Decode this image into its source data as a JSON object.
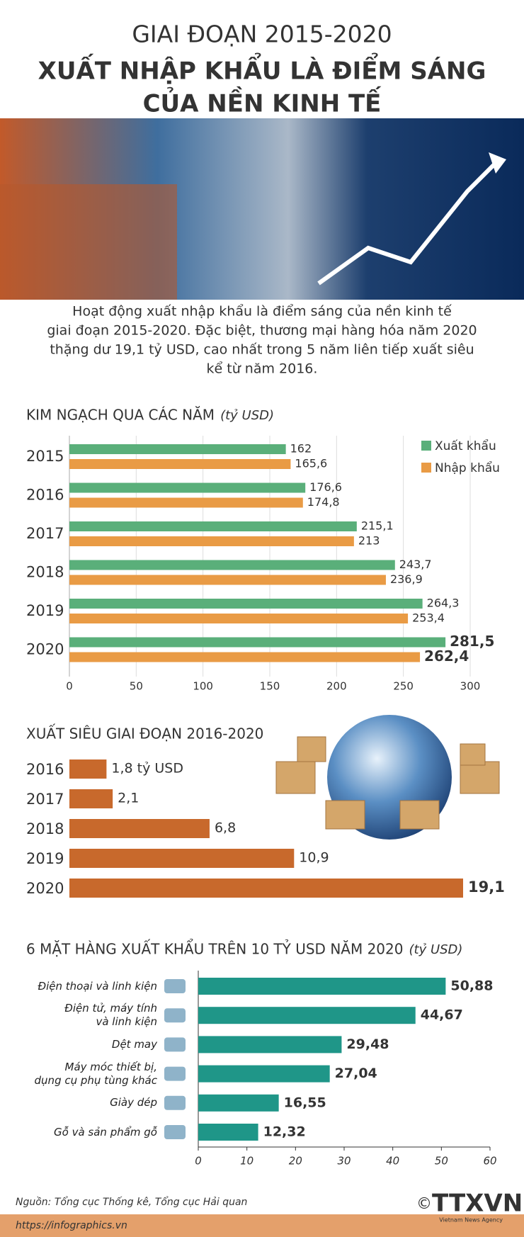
{
  "subtitle": "GIAI ĐOẠN 2015-2020",
  "title": [
    "XUẤT NHẬP KHẨU LÀ ĐIỂM SÁNG",
    "CỦA NỀN KINH TẾ"
  ],
  "intro": [
    "Hoạt động xuất nhập khẩu là điểm sáng của nền kinh tế",
    "giai đoạn 2015-2020. Đặc biệt, thương mại hàng hóa năm 2020",
    "thặng dư 19,1 tỷ USD, cao nhất trong 5 năm liên tiếp xuất siêu",
    "kể từ năm 2016."
  ],
  "chart_data": [
    {
      "type": "grouped-hbar",
      "title": "KIM NGẠCH QUA CÁC NĂM",
      "unit": "(tỷ USD)",
      "categories": [
        "2015",
        "2016",
        "2017",
        "2018",
        "2019",
        "2020"
      ],
      "series": [
        {
          "name": "Xuất khẩu",
          "color": "#5aaf7a",
          "values": [
            162,
            176.6,
            215.1,
            243.7,
            264.3,
            281.5
          ],
          "value_labels": [
            "162",
            "176,6",
            "215,1",
            "243,7",
            "264,3",
            "281,5"
          ]
        },
        {
          "name": "Nhập khẩu",
          "color": "#e99b45",
          "values": [
            165.6,
            174.8,
            213,
            236.9,
            253.4,
            262.4
          ],
          "value_labels": [
            "165,6",
            "174,8",
            "213",
            "236,9",
            "253,4",
            "262,4"
          ]
        }
      ],
      "xlim": [
        0,
        300
      ],
      "xticks": [
        0,
        50,
        100,
        150,
        200,
        250,
        300
      ],
      "grid": true,
      "legend": "top-right"
    },
    {
      "type": "hbar",
      "title": "XUẤT SIÊU GIAI ĐOẠN 2016-2020",
      "color": "#c8692c",
      "categories": [
        "2016",
        "2017",
        "2018",
        "2019",
        "2020"
      ],
      "values": [
        1.8,
        2.1,
        6.8,
        10.9,
        19.1
      ],
      "value_labels": [
        "1,8 tỷ USD",
        "2,1",
        "6,8",
        "10,9",
        "19,1"
      ]
    },
    {
      "type": "hbar-axis",
      "title": "6 MẶT HÀNG XUẤT KHẨU TRÊN 10 TỶ USD NĂM 2020",
      "unit": "(tỷ USD)",
      "color": "#1f9688",
      "categories": [
        "Điện thoại và linh kiện",
        "Điện tử, máy tính\nvà linh kiện",
        "Dệt may",
        "Máy móc thiết bị,\ndụng cụ phụ tùng khác",
        "Giày dép",
        "Gỗ và sản phẩm gỗ"
      ],
      "values": [
        50.88,
        44.67,
        29.48,
        27.04,
        16.55,
        12.32
      ],
      "value_labels": [
        "50,88",
        "44,67",
        "29,48",
        "27,04",
        "16,55",
        "12,32"
      ],
      "xlim": [
        0,
        60
      ],
      "xticks": [
        0,
        10,
        20,
        30,
        40,
        50,
        60
      ]
    }
  ],
  "source": "Nguồn: Tổng cục Thống kê, Tổng cục Hải quan",
  "url": "https://infographics.vn",
  "logo": "TTXVN",
  "logo_sub": "Vietnam News Agency",
  "copyright": "©"
}
